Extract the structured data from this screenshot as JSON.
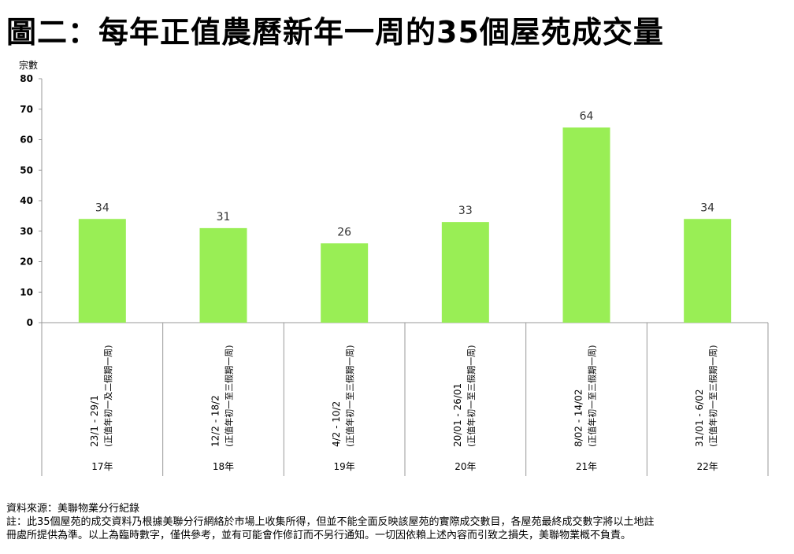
{
  "page": {
    "title": "圖二：每年正值農曆新年一周的35個屋苑成交量"
  },
  "chart_data": {
    "type": "bar",
    "title": "",
    "ylabel": "宗數",
    "xlabel": "",
    "ylim": [
      0,
      80
    ],
    "yticks": [
      0,
      10,
      20,
      30,
      40,
      50,
      60,
      70,
      80
    ],
    "bar_color": "#99ee55",
    "categories": [
      "17年",
      "18年",
      "19年",
      "20年",
      "21年",
      "22年"
    ],
    "date_ranges": [
      "23/1 - 29/1",
      "12/2 - 18/2",
      "4/2 - 10/2",
      "20/01 - 26/01",
      "8/02 - 14/02",
      "31/01 - 6/02"
    ],
    "period_notes": [
      "(正值年初一及二假期一周)",
      "(正值年初一至三假期一周)",
      "(正值年初一至三假期一周)",
      "(正值年初一至三假期一周)",
      "(正值年初一至三假期一周)",
      "(正值年初一至三假期一周)"
    ],
    "values": [
      34,
      31,
      26,
      33,
      64,
      34
    ],
    "grid": false
  },
  "footer": {
    "source": "資料來源：美聯物業分行紀錄",
    "note_line1": "註：此35個屋苑的成交資料乃根據美聯分行網絡於市場上收集所得，但並不能全面反映該屋苑的實際成交數目，各屋苑最終成交數字將以土地註",
    "note_line2": "冊處所提供為準。以上為臨時數字，僅供參考，並有可能會作修訂而不另行通知。一切因依賴上述內容而引致之損失，美聯物業概不負責。"
  }
}
